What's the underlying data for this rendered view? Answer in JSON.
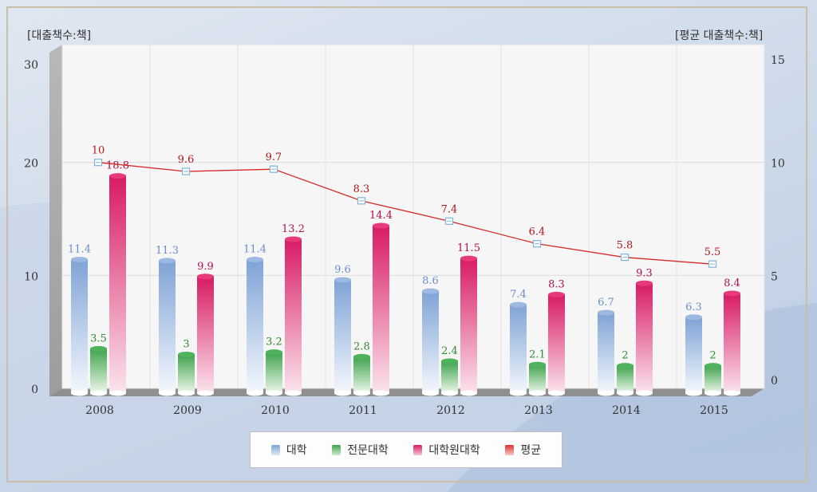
{
  "chart_data": {
    "type": "bar",
    "categories": [
      "2008",
      "2009",
      "2010",
      "2011",
      "2012",
      "2013",
      "2014",
      "2015"
    ],
    "series": [
      {
        "name": "대학",
        "axis": "left",
        "values": [
          11.4,
          11.3,
          11.4,
          9.6,
          8.6,
          7.4,
          6.7,
          6.3
        ],
        "color": "#7fa3d6"
      },
      {
        "name": "전문대학",
        "axis": "left",
        "values": [
          3.5,
          3,
          3.2,
          2.8,
          2.4,
          2.1,
          2,
          2
        ],
        "color": "#3fa34d"
      },
      {
        "name": "대학원대학",
        "axis": "left",
        "values": [
          18.8,
          9.9,
          13.2,
          14.4,
          11.5,
          8.3,
          9.3,
          8.4
        ],
        "color": "#d81b64"
      },
      {
        "name": "평균",
        "axis": "right",
        "type": "line",
        "values": [
          10,
          9.6,
          9.7,
          8.3,
          7.4,
          6.4,
          5.8,
          5.5
        ],
        "color": "#d42a2a"
      }
    ],
    "ylabel": "[대출책수:책]",
    "y2label": "[평균 대출책수:책]",
    "ylim": [
      0,
      30
    ],
    "y2lim": [
      0,
      15
    ],
    "yticks": [
      "0",
      "10",
      "20",
      "30"
    ],
    "y2ticks": [
      "0",
      "5",
      "10",
      "15"
    ],
    "grid": true,
    "legend": "bottom-center",
    "label_colors": {
      "대학": "#6a8fc8",
      "전문대학": "#2f8a2f",
      "대학원대학": "#b0104c",
      "평균": "#b01818"
    }
  }
}
